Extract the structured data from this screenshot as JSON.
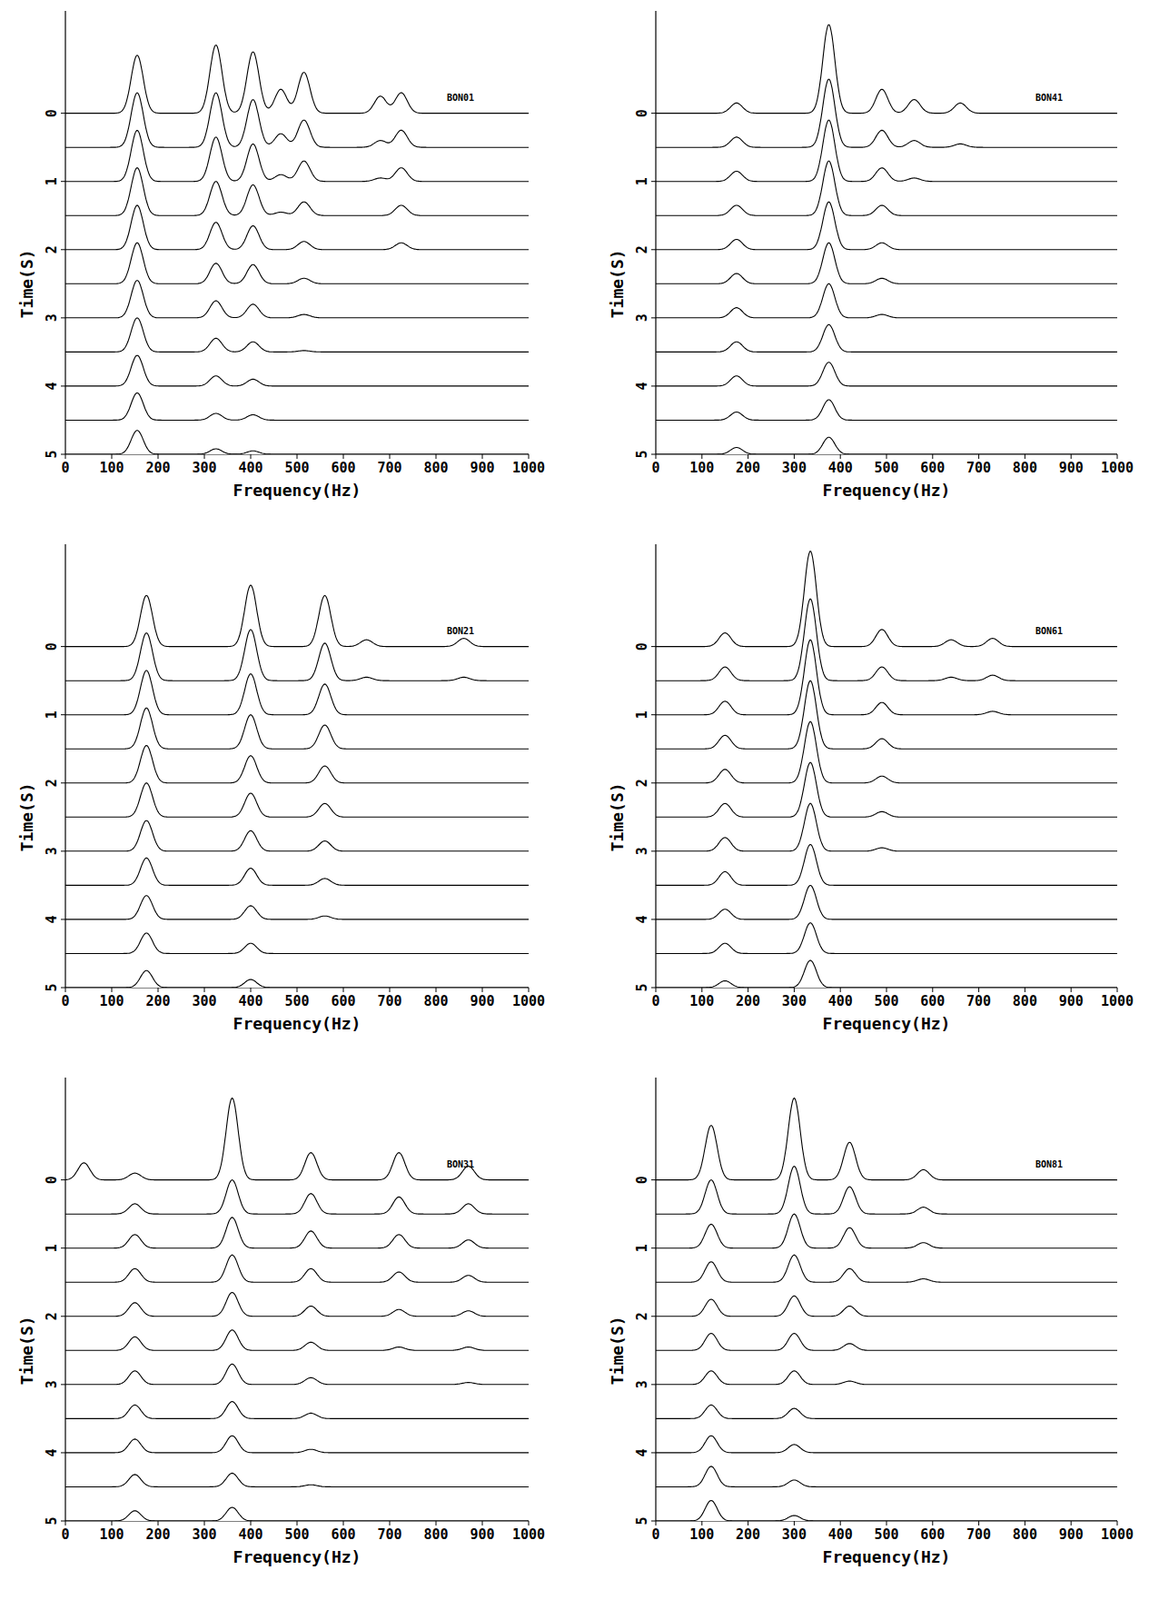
{
  "chart_data": [
    {
      "type": "waterfall",
      "label": "BON01",
      "x_label": "Frequency(Hz)",
      "y_label": "Time(S)",
      "xlim": [
        0,
        1000
      ],
      "ylim": [
        -1.5,
        5
      ],
      "xticks": [
        0,
        100,
        200,
        300,
        400,
        500,
        600,
        700,
        800,
        900,
        1000
      ],
      "yticks": [
        0,
        1,
        2,
        3,
        4,
        5
      ],
      "times": [
        0,
        0.5,
        1,
        1.5,
        2,
        2.5,
        3,
        3.5,
        4,
        4.5,
        5
      ],
      "peaks": [
        {
          "frequency": 155,
          "amplitude": [
            0.85,
            0.8,
            0.75,
            0.7,
            0.65,
            0.6,
            0.55,
            0.5,
            0.45,
            0.4,
            0.35
          ]
        },
        {
          "frequency": 325,
          "amplitude": [
            1.0,
            0.8,
            0.65,
            0.5,
            0.4,
            0.3,
            0.25,
            0.2,
            0.15,
            0.1,
            0.08
          ]
        },
        {
          "frequency": 405,
          "amplitude": [
            0.9,
            0.7,
            0.55,
            0.45,
            0.35,
            0.28,
            0.2,
            0.15,
            0.1,
            0.08,
            0.05
          ]
        },
        {
          "frequency": 465,
          "amplitude": [
            0.35,
            0.2,
            0.1,
            0.05,
            0,
            0,
            0,
            0,
            0,
            0,
            0
          ]
        },
        {
          "frequency": 515,
          "amplitude": [
            0.6,
            0.4,
            0.3,
            0.2,
            0.12,
            0.08,
            0.05,
            0.02,
            0,
            0,
            0
          ]
        },
        {
          "frequency": 680,
          "amplitude": [
            0.25,
            0.1,
            0.05,
            0,
            0,
            0,
            0,
            0,
            0,
            0,
            0
          ]
        },
        {
          "frequency": 725,
          "amplitude": [
            0.3,
            0.25,
            0.2,
            0.15,
            0.1,
            0,
            0,
            0,
            0,
            0,
            0
          ]
        }
      ]
    },
    {
      "type": "waterfall",
      "label": "BON41",
      "x_label": "Frequency(Hz)",
      "y_label": "Time(S)",
      "xlim": [
        0,
        1000
      ],
      "ylim": [
        -1.5,
        5
      ],
      "xticks": [
        0,
        100,
        200,
        300,
        400,
        500,
        600,
        700,
        800,
        900,
        1000
      ],
      "yticks": [
        0,
        1,
        2,
        3,
        4,
        5
      ],
      "times": [
        0,
        0.5,
        1,
        1.5,
        2,
        2.5,
        3,
        3.5,
        4,
        4.5,
        5
      ],
      "peaks": [
        {
          "frequency": 175,
          "amplitude": [
            0.15,
            0.15,
            0.15,
            0.15,
            0.15,
            0.15,
            0.15,
            0.15,
            0.15,
            0.12,
            0.1
          ]
        },
        {
          "frequency": 375,
          "amplitude": [
            1.3,
            1.0,
            0.9,
            0.8,
            0.7,
            0.6,
            0.5,
            0.4,
            0.35,
            0.3,
            0.25
          ]
        },
        {
          "frequency": 490,
          "amplitude": [
            0.35,
            0.25,
            0.2,
            0.15,
            0.1,
            0.08,
            0.05,
            0,
            0,
            0,
            0
          ]
        },
        {
          "frequency": 560,
          "amplitude": [
            0.2,
            0.1,
            0.05,
            0,
            0,
            0,
            0,
            0,
            0,
            0,
            0
          ]
        },
        {
          "frequency": 660,
          "amplitude": [
            0.15,
            0.05,
            0,
            0,
            0,
            0,
            0,
            0,
            0,
            0,
            0
          ]
        }
      ]
    },
    {
      "type": "waterfall",
      "label": "BON21",
      "x_label": "Frequency(Hz)",
      "y_label": "Time(S)",
      "xlim": [
        0,
        1000
      ],
      "ylim": [
        -1.5,
        5
      ],
      "xticks": [
        0,
        100,
        200,
        300,
        400,
        500,
        600,
        700,
        800,
        900,
        1000
      ],
      "yticks": [
        0,
        1,
        2,
        3,
        4,
        5
      ],
      "times": [
        0,
        0.5,
        1,
        1.5,
        2,
        2.5,
        3,
        3.5,
        4,
        4.5,
        5
      ],
      "peaks": [
        {
          "frequency": 175,
          "amplitude": [
            0.75,
            0.7,
            0.65,
            0.6,
            0.55,
            0.5,
            0.45,
            0.4,
            0.35,
            0.3,
            0.25
          ]
        },
        {
          "frequency": 400,
          "amplitude": [
            0.9,
            0.75,
            0.6,
            0.5,
            0.4,
            0.35,
            0.3,
            0.25,
            0.2,
            0.15,
            0.12
          ]
        },
        {
          "frequency": 560,
          "amplitude": [
            0.75,
            0.55,
            0.45,
            0.35,
            0.25,
            0.2,
            0.15,
            0.1,
            0.05,
            0,
            0
          ]
        },
        {
          "frequency": 650,
          "amplitude": [
            0.1,
            0.05,
            0,
            0,
            0,
            0,
            0,
            0,
            0,
            0,
            0
          ]
        },
        {
          "frequency": 860,
          "amplitude": [
            0.12,
            0.05,
            0,
            0,
            0,
            0,
            0,
            0,
            0,
            0,
            0
          ]
        }
      ]
    },
    {
      "type": "waterfall",
      "label": "BON61",
      "x_label": "Frequency(Hz)",
      "y_label": "Time(S)",
      "xlim": [
        0,
        1000
      ],
      "ylim": [
        -1.5,
        5
      ],
      "xticks": [
        0,
        100,
        200,
        300,
        400,
        500,
        600,
        700,
        800,
        900,
        1000
      ],
      "yticks": [
        0,
        1,
        2,
        3,
        4,
        5
      ],
      "times": [
        0,
        0.5,
        1,
        1.5,
        2,
        2.5,
        3,
        3.5,
        4,
        4.5,
        5
      ],
      "peaks": [
        {
          "frequency": 150,
          "amplitude": [
            0.2,
            0.2,
            0.2,
            0.2,
            0.2,
            0.2,
            0.2,
            0.2,
            0.15,
            0.15,
            0.1
          ]
        },
        {
          "frequency": 335,
          "amplitude": [
            1.4,
            1.2,
            1.1,
            1.0,
            0.9,
            0.8,
            0.7,
            0.6,
            0.5,
            0.45,
            0.4
          ]
        },
        {
          "frequency": 490,
          "amplitude": [
            0.25,
            0.2,
            0.18,
            0.15,
            0.1,
            0.08,
            0.05,
            0,
            0,
            0,
            0
          ]
        },
        {
          "frequency": 640,
          "amplitude": [
            0.1,
            0.05,
            0,
            0,
            0,
            0,
            0,
            0,
            0,
            0,
            0
          ]
        },
        {
          "frequency": 730,
          "amplitude": [
            0.12,
            0.08,
            0.05,
            0,
            0,
            0,
            0,
            0,
            0,
            0,
            0
          ]
        }
      ]
    },
    {
      "type": "waterfall",
      "label": "BON31",
      "x_label": "Frequency(Hz)",
      "y_label": "Time(S)",
      "xlim": [
        0,
        1000
      ],
      "ylim": [
        -1.5,
        5
      ],
      "xticks": [
        0,
        100,
        200,
        300,
        400,
        500,
        600,
        700,
        800,
        900,
        1000
      ],
      "yticks": [
        0,
        1,
        2,
        3,
        4,
        5
      ],
      "times": [
        0,
        0.5,
        1,
        1.5,
        2,
        2.5,
        3,
        3.5,
        4,
        4.5,
        5
      ],
      "peaks": [
        {
          "frequency": 40,
          "amplitude": [
            0.25,
            0,
            0,
            0,
            0,
            0,
            0,
            0,
            0,
            0,
            0
          ]
        },
        {
          "frequency": 150,
          "amplitude": [
            0.1,
            0.15,
            0.2,
            0.2,
            0.2,
            0.2,
            0.2,
            0.2,
            0.2,
            0.18,
            0.15
          ]
        },
        {
          "frequency": 360,
          "amplitude": [
            1.2,
            0.5,
            0.45,
            0.4,
            0.35,
            0.3,
            0.3,
            0.25,
            0.25,
            0.2,
            0.2
          ]
        },
        {
          "frequency": 530,
          "amplitude": [
            0.4,
            0.3,
            0.25,
            0.2,
            0.15,
            0.12,
            0.1,
            0.08,
            0.05,
            0.03,
            0
          ]
        },
        {
          "frequency": 720,
          "amplitude": [
            0.4,
            0.25,
            0.2,
            0.15,
            0.1,
            0.05,
            0,
            0,
            0,
            0,
            0
          ]
        },
        {
          "frequency": 870,
          "amplitude": [
            0.2,
            0.15,
            0.12,
            0.1,
            0.08,
            0.05,
            0.03,
            0,
            0,
            0,
            0
          ]
        }
      ]
    },
    {
      "type": "waterfall",
      "label": "BON81",
      "x_label": "Frequency(Hz)",
      "y_label": "Time(S)",
      "xlim": [
        0,
        1000
      ],
      "ylim": [
        -1.5,
        5
      ],
      "xticks": [
        0,
        100,
        200,
        300,
        400,
        500,
        600,
        700,
        800,
        900,
        1000
      ],
      "yticks": [
        0,
        1,
        2,
        3,
        4,
        5
      ],
      "times": [
        0,
        0.5,
        1,
        1.5,
        2,
        2.5,
        3,
        3.5,
        4,
        4.5,
        5
      ],
      "peaks": [
        {
          "frequency": 120,
          "amplitude": [
            0.8,
            0.5,
            0.35,
            0.3,
            0.25,
            0.25,
            0.2,
            0.2,
            0.25,
            0.3,
            0.3
          ]
        },
        {
          "frequency": 300,
          "amplitude": [
            1.2,
            0.7,
            0.5,
            0.4,
            0.3,
            0.25,
            0.2,
            0.15,
            0.12,
            0.1,
            0.08
          ]
        },
        {
          "frequency": 420,
          "amplitude": [
            0.55,
            0.4,
            0.3,
            0.2,
            0.15,
            0.1,
            0.05,
            0,
            0,
            0,
            0
          ]
        },
        {
          "frequency": 580,
          "amplitude": [
            0.15,
            0.1,
            0.08,
            0.05,
            0,
            0,
            0,
            0,
            0,
            0,
            0
          ]
        }
      ]
    }
  ]
}
